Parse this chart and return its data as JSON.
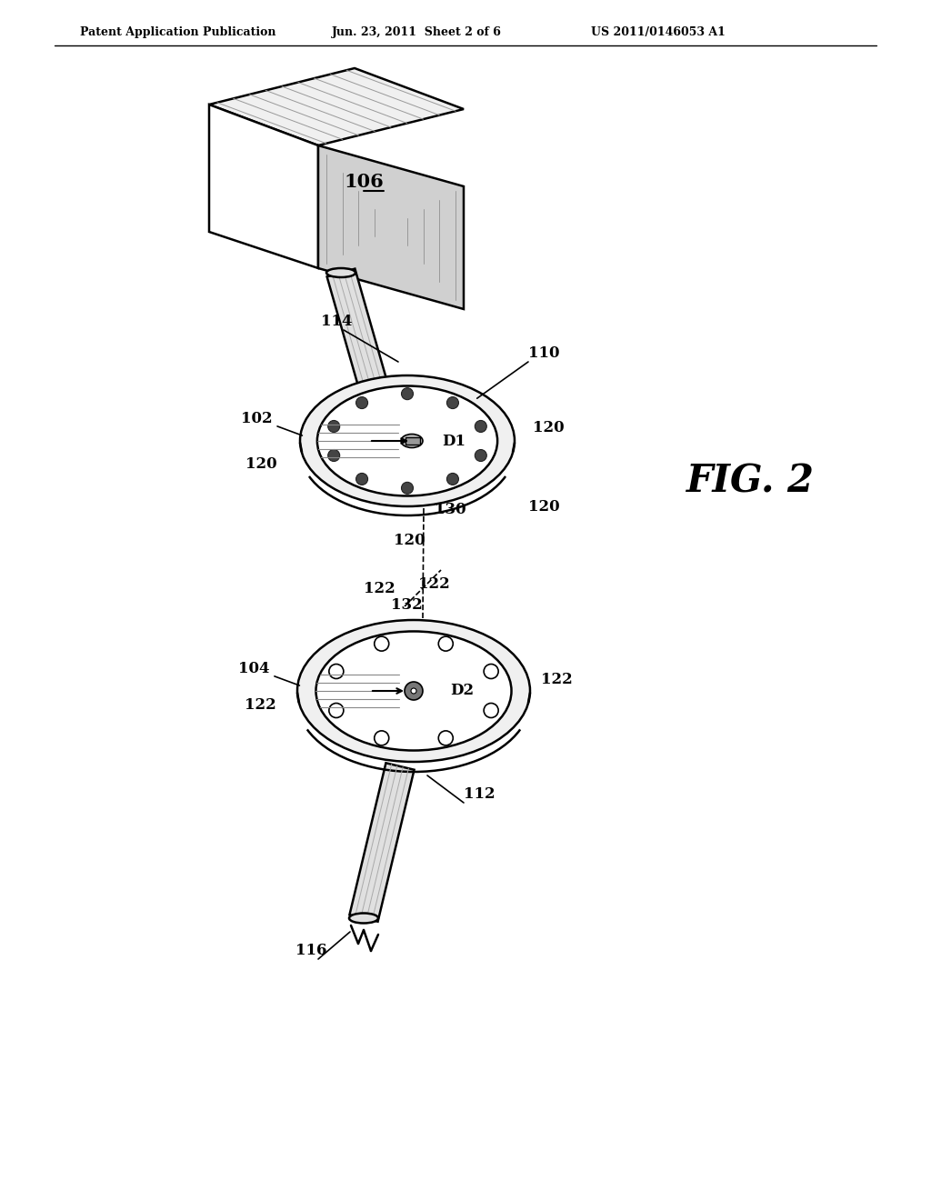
{
  "bg_color": "#ffffff",
  "line_color": "#000000",
  "gray_light": "#cccccc",
  "gray_medium": "#aaaaaa",
  "gray_dark": "#888888",
  "gray_fill": "#e8e8e8",
  "header_left": "Patent Application Publication",
  "header_mid": "Jun. 23, 2011  Sheet 2 of 6",
  "header_right": "US 2011/0146053 A1",
  "fig_label": "FIG. 2",
  "label_106": "106",
  "label_114": "114",
  "label_110": "110",
  "label_102": "102",
  "label_120": "120",
  "label_130": "130",
  "label_104": "104",
  "label_122": "122",
  "label_132": "132",
  "label_116": "116",
  "label_112": "112",
  "label_D1": "D1",
  "label_D2": "D2"
}
